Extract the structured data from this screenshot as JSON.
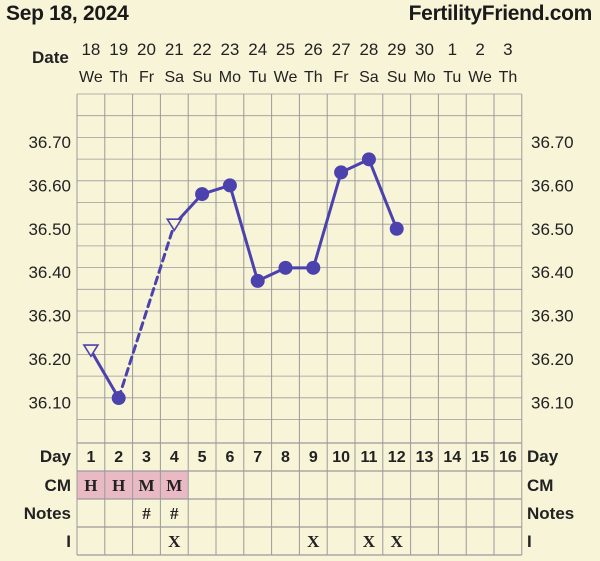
{
  "header": {
    "date": "Sep 18, 2024",
    "site": "FertilityFriend.com"
  },
  "labels": {
    "date_row": "Date",
    "day_row": "Day",
    "cm_row": "CM",
    "notes_row": "Notes",
    "intercourse_row": "I"
  },
  "colors": {
    "background": "#f8f4d8",
    "line": "#4c42ad",
    "grid": "#9a9a9a",
    "cm_cell": "#e9b9c4",
    "text": "#222222"
  },
  "chart_data": {
    "type": "line",
    "dates": [
      "18",
      "19",
      "20",
      "21",
      "22",
      "23",
      "24",
      "25",
      "26",
      "27",
      "28",
      "29",
      "30",
      "1",
      "2",
      "3"
    ],
    "weekdays": [
      "We",
      "Th",
      "Fr",
      "Sa",
      "Su",
      "Mo",
      "Tu",
      "We",
      "Th",
      "Fr",
      "Sa",
      "Su",
      "Mo",
      "Tu",
      "We",
      "Th"
    ],
    "cycle_days": [
      "1",
      "2",
      "3",
      "4",
      "5",
      "6",
      "7",
      "8",
      "9",
      "10",
      "11",
      "12",
      "13",
      "14",
      "15",
      "16"
    ],
    "y_ticks": [
      "36.70",
      "36.60",
      "36.50",
      "36.40",
      "36.30",
      "36.20",
      "36.10"
    ],
    "ylim": [
      36.0,
      36.8
    ],
    "series": [
      {
        "temperatures": [
          36.22,
          36.11,
          null,
          36.51,
          36.58,
          36.6,
          36.38,
          36.41,
          36.41,
          36.63,
          36.66,
          36.5,
          null,
          null,
          null,
          null
        ],
        "point_style": [
          "open-triangle",
          "filled-circle",
          null,
          "open-triangle",
          "filled-circle",
          "filled-circle",
          "filled-circle",
          "filled-circle",
          "filled-circle",
          "filled-circle",
          "filled-circle",
          "filled-circle",
          null,
          null,
          null,
          null
        ],
        "connector": [
          "solid",
          "dashed",
          "dashed",
          "solid",
          "solid",
          "solid",
          "solid",
          "solid",
          "solid",
          "solid",
          "solid",
          null,
          null,
          null,
          null
        ]
      }
    ],
    "cm": [
      "H",
      "H",
      "M",
      "M",
      "",
      "",
      "",
      "",
      "",
      "",
      "",
      "",
      "",
      "",
      "",
      ""
    ],
    "notes": [
      "",
      "",
      "#",
      "#",
      "",
      "",
      "",
      "",
      "",
      "",
      "",
      "",
      "",
      "",
      "",
      ""
    ],
    "intercourse": [
      "",
      "",
      "",
      "X",
      "",
      "",
      "",
      "",
      "X",
      "",
      "X",
      "X",
      "",
      "",
      "",
      ""
    ]
  }
}
